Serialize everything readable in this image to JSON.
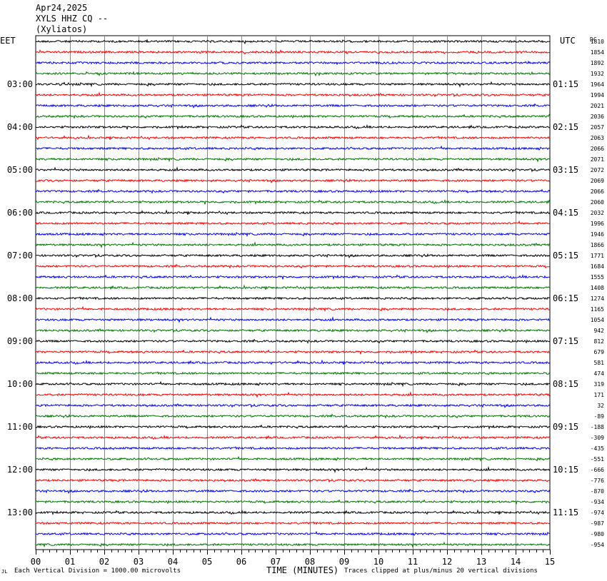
{
  "header": {
    "date": "Apr24,2025",
    "station": "XYLS HHZ CQ --",
    "location": "(Xyliatos)"
  },
  "left_label": "EET",
  "right_label": "UTC",
  "dc_label": "DC",
  "footer": {
    "left_mark": "JL",
    "scale_note": "Each Vertical Division = 1000.00 microvolts",
    "x_title": "TIME (MINUTES)",
    "clip_note": "Traces clipped at plus/minus 20 vertical divisions"
  },
  "chart_data": {
    "type": "line",
    "title": "XYLS HHZ CQ --",
    "xlabel": "TIME (MINUTES)",
    "xlim": [
      0,
      15
    ],
    "x_ticks": [
      "00",
      "01",
      "02",
      "03",
      "04",
      "05",
      "06",
      "07",
      "08",
      "09",
      "10",
      "11",
      "12",
      "13",
      "14",
      "15"
    ],
    "grid": true,
    "colors": [
      "#000000",
      "#ff0000",
      "#0000ff",
      "#007700"
    ],
    "left_time_labels": [
      "03:00",
      "04:00",
      "05:00",
      "06:00",
      "07:00",
      "08:00",
      "09:00",
      "10:00",
      "11:00",
      "12:00",
      "13:00"
    ],
    "right_time_labels": [
      "01:15",
      "02:15",
      "03:15",
      "04:15",
      "05:15",
      "06:15",
      "07:15",
      "08:15",
      "09:15",
      "10:15",
      "11:15"
    ],
    "dc_offsets": [
      1810,
      1854,
      1892,
      1932,
      1964,
      1994,
      2021,
      2036,
      2057,
      2063,
      2066,
      2071,
      2072,
      2069,
      2066,
      2060,
      2032,
      1996,
      1946,
      1866,
      1771,
      1684,
      1555,
      1408,
      1274,
      1165,
      1054,
      942,
      812,
      679,
      581,
      474,
      319,
      171,
      32,
      -89,
      -188,
      -309,
      -435,
      -551,
      -666,
      -776,
      -870,
      -934,
      -974,
      -987,
      -980,
      -954
    ]
  }
}
